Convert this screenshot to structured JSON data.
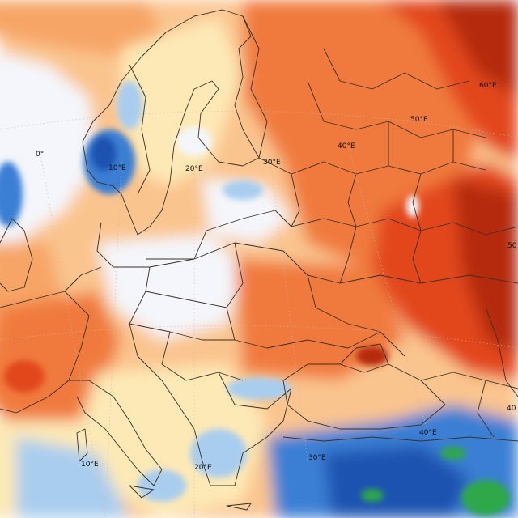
{
  "map": {
    "grid_labels": [
      {
        "id": "lon-0-north",
        "text": "0°"
      },
      {
        "id": "lon-10e-north",
        "text": "10°E"
      },
      {
        "id": "lon-20e-north",
        "text": "20°E"
      },
      {
        "id": "lon-30e-north",
        "text": "30°E"
      },
      {
        "id": "lon-40e-north",
        "text": "40°E"
      },
      {
        "id": "lon-50e-north",
        "text": "50°E"
      },
      {
        "id": "lat-60-east",
        "text": "60°E"
      },
      {
        "id": "lat-50-east",
        "text": "50"
      },
      {
        "id": "lon-10e-south",
        "text": "10°E"
      },
      {
        "id": "lon-20e-south",
        "text": "20°E"
      },
      {
        "id": "lon-30e-south",
        "text": "30°E"
      },
      {
        "id": "lon-40e-south",
        "text": "40°E"
      },
      {
        "id": "lat-40-east",
        "text": "40"
      }
    ],
    "colors": {
      "deep_red": "#b52a08",
      "red": "#e2471a",
      "orange": "#f07a3c",
      "light_orange": "#f7a566",
      "peach": "#fac48e",
      "pale_yellow": "#fde9b6",
      "near_white": "#f4f6fb",
      "light_blue": "#a9cdef",
      "blue": "#3b7fd4",
      "dark_blue": "#1a52b0",
      "green": "#2da84a",
      "border": "#3a3026"
    }
  }
}
